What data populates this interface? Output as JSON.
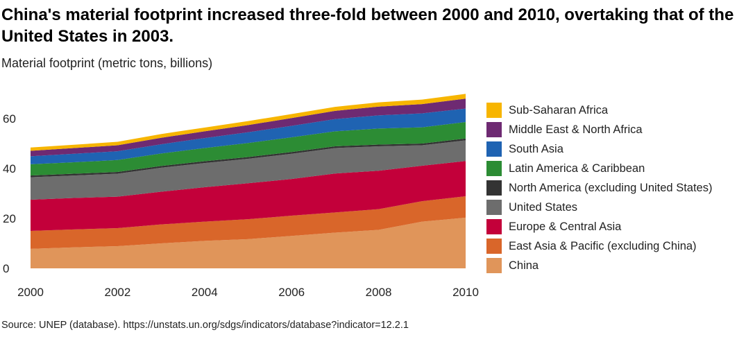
{
  "title": "China's material footprint increased three-fold between 2000 and 2010, overtaking that of the United States in 2003.",
  "subtitle": "Material footprint (metric tons, billions)",
  "source": "Source: UNEP (database). https://unstats.un.org/sdgs/indicators/database?indicator=12.2.1",
  "chart_data": {
    "type": "area",
    "stacked": true,
    "x": [
      2000,
      2001,
      2002,
      2003,
      2004,
      2005,
      2006,
      2007,
      2008,
      2009,
      2010
    ],
    "x_ticks": [
      "2000",
      "2002",
      "2004",
      "2006",
      "2008",
      "2010"
    ],
    "y_ticks": [
      "0",
      "20",
      "40",
      "60"
    ],
    "ylim": [
      0,
      70
    ],
    "xlim": [
      2000,
      2010
    ],
    "grid": false,
    "legend_position": "right",
    "series": [
      {
        "name": "China",
        "color": "#E0955A",
        "values": [
          7.8,
          8.4,
          8.9,
          10.0,
          11.0,
          11.7,
          13.0,
          14.3,
          15.4,
          18.7,
          20.3
        ]
      },
      {
        "name": "East Asia & Pacific (excluding China)",
        "color": "#D9662A",
        "values": [
          7.2,
          7.2,
          7.2,
          7.6,
          7.7,
          8.0,
          8.1,
          8.1,
          8.3,
          8.2,
          8.6
        ]
      },
      {
        "name": "Europe & Central Asia",
        "color": "#C3003A",
        "values": [
          12.5,
          12.6,
          12.6,
          13.1,
          13.8,
          14.4,
          14.7,
          15.6,
          15.4,
          14.2,
          14.1
        ]
      },
      {
        "name": "United States",
        "color": "#6D6D6D",
        "values": [
          9.0,
          9.0,
          9.2,
          9.6,
          9.7,
          9.8,
          10.1,
          10.2,
          9.8,
          8.2,
          8.3
        ]
      },
      {
        "name": "North America (excluding United States)",
        "color": "#333333",
        "values": [
          0.7,
          0.7,
          0.7,
          0.7,
          0.7,
          0.7,
          0.7,
          0.7,
          0.7,
          0.7,
          0.7
        ]
      },
      {
        "name": "Latin America & Caribbean",
        "color": "#2C8C34",
        "values": [
          4.5,
          4.6,
          4.8,
          5.0,
          5.3,
          5.6,
          5.9,
          6.0,
          6.4,
          6.5,
          6.6
        ]
      },
      {
        "name": "South Asia",
        "color": "#1F63B2",
        "values": [
          3.2,
          3.4,
          3.5,
          3.7,
          4.0,
          4.3,
          4.6,
          4.9,
          5.3,
          5.6,
          5.4
        ]
      },
      {
        "name": "Middle East & North Africa",
        "color": "#6E2A72",
        "values": [
          2.2,
          2.3,
          2.4,
          2.6,
          2.7,
          2.9,
          3.1,
          3.3,
          3.5,
          3.7,
          4.0
        ]
      },
      {
        "name": "Sub-Saharan Africa",
        "color": "#F7B500",
        "values": [
          1.3,
          1.3,
          1.4,
          1.5,
          1.5,
          1.6,
          1.6,
          1.6,
          1.7,
          1.8,
          1.9
        ]
      }
    ]
  }
}
